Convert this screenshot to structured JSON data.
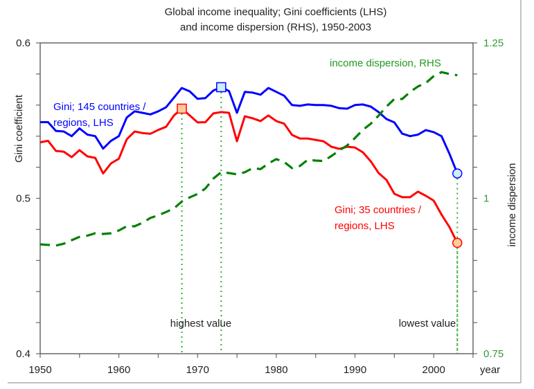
{
  "chart_data": {
    "type": "line",
    "title_line1": "Global income inequality; Gini coefficients (LHS)",
    "title_line2": "and income dispersion (RHS), 1950-2003",
    "xlabel": "year",
    "ylabel": "Gini coefficient",
    "y2label": "income dispersion",
    "xlim": [
      1950,
      2005
    ],
    "ylim": [
      0.4,
      0.6
    ],
    "y2lim": [
      0.75,
      1.25
    ],
    "x_ticks": [
      1950,
      1960,
      1970,
      1980,
      1990,
      2000
    ],
    "x_tick_labels": [
      "1950",
      "1960",
      "1970",
      "1980",
      "1990",
      "2000"
    ],
    "y_tick_labels": [
      "0.6",
      "0.5",
      "0.4"
    ],
    "y_ticks": [
      0.6,
      0.5,
      0.4
    ],
    "y2_tick_labels": [
      "1.25",
      "1",
      "0.75"
    ],
    "y2_ticks": [
      1.25,
      1.0,
      0.75
    ],
    "grid": false,
    "x": [
      1950,
      1951,
      1952,
      1953,
      1954,
      1955,
      1956,
      1957,
      1958,
      1959,
      1960,
      1961,
      1962,
      1963,
      1964,
      1965,
      1966,
      1967,
      1968,
      1969,
      1970,
      1971,
      1972,
      1973,
      1974,
      1975,
      1976,
      1977,
      1978,
      1979,
      1980,
      1981,
      1982,
      1983,
      1984,
      1985,
      1986,
      1987,
      1988,
      1989,
      1990,
      1991,
      1992,
      1993,
      1994,
      1995,
      1996,
      1997,
      1998,
      1999,
      2000,
      2001,
      2002,
      2003
    ],
    "series": [
      {
        "name": "Gini; 145 countries / regions, LHS",
        "label_line1": "Gini; 145 countries /",
        "label_line2": "regions, LHS",
        "axis": "left",
        "color": "#0000ff",
        "values": [
          0.549,
          0.549,
          0.5434,
          0.543,
          0.54,
          0.545,
          0.541,
          0.54,
          0.532,
          0.537,
          0.54,
          0.552,
          0.556,
          0.555,
          0.554,
          0.556,
          0.5586,
          0.5648,
          0.571,
          0.5688,
          0.564,
          0.5645,
          0.5693,
          0.5715,
          0.569,
          0.555,
          0.5685,
          0.568,
          0.5667,
          0.571,
          0.5685,
          0.566,
          0.56,
          0.5595,
          0.5604,
          0.56,
          0.56,
          0.5595,
          0.558,
          0.5577,
          0.56,
          0.5604,
          0.559,
          0.5555,
          0.551,
          0.5488,
          0.5416,
          0.54,
          0.541,
          0.5439,
          0.5426,
          0.54,
          0.5287,
          0.516
        ]
      },
      {
        "name": "Gini; 35 countries / regions, LHS",
        "label_line1": "Gini; 35 countries /",
        "label_line2": "regions, LHS",
        "axis": "left",
        "color": "#ff0000",
        "values": [
          0.536,
          0.537,
          0.5305,
          0.53,
          0.5265,
          0.531,
          0.527,
          0.526,
          0.516,
          0.5225,
          0.5255,
          0.538,
          0.543,
          0.542,
          0.5415,
          0.544,
          0.546,
          0.5533,
          0.5577,
          0.5533,
          0.5488,
          0.549,
          0.5546,
          0.5555,
          0.555,
          0.5367,
          0.5528,
          0.5515,
          0.5497,
          0.5533,
          0.5497,
          0.548,
          0.5408,
          0.5385,
          0.5385,
          0.5376,
          0.5367,
          0.5332,
          0.5318,
          0.5332,
          0.5327,
          0.5296,
          0.5238,
          0.5163,
          0.5118,
          0.5029,
          0.5007,
          0.5007,
          0.5043,
          0.5016,
          0.4985,
          0.4895,
          0.4815,
          0.4713
        ]
      },
      {
        "name": "income dispersion, RHS",
        "label_line1": "income dispersion, RHS",
        "axis": "right",
        "color": "#008000",
        "style": "dashed",
        "values": [
          0.926,
          0.925,
          0.924,
          0.927,
          0.9326,
          0.938,
          0.94,
          0.9438,
          0.9427,
          0.9438,
          0.9482,
          0.955,
          0.955,
          0.9606,
          0.9684,
          0.9727,
          0.978,
          0.9837,
          0.9948,
          1.0015,
          1.007,
          1.0158,
          1.0317,
          1.042,
          1.0407,
          1.0385,
          1.042,
          1.0485,
          1.047,
          1.056,
          1.063,
          1.0585,
          1.0485,
          1.052,
          1.062,
          1.0607,
          1.06,
          1.068,
          1.077,
          1.085,
          1.097,
          1.11,
          1.12,
          1.133,
          1.1476,
          1.1598,
          1.1598,
          1.171,
          1.18,
          1.1855,
          1.1966,
          1.203,
          1.2,
          1.198
        ]
      }
    ],
    "markers": [
      {
        "series": 0,
        "year": 1973,
        "shape": "square",
        "fill": "#cceeff",
        "stroke": "#0000ff",
        "meaning": "highest"
      },
      {
        "series": 1,
        "year": 1968,
        "shape": "square",
        "fill": "#ffcc99",
        "stroke": "#ff0000",
        "meaning": "highest"
      },
      {
        "series": 0,
        "year": 2003,
        "shape": "circle",
        "fill": "#cceeff",
        "stroke": "#0000ff",
        "meaning": "lowest"
      },
      {
        "series": 1,
        "year": 2003,
        "shape": "circle",
        "fill": "#ffcc99",
        "stroke": "#ff0000",
        "meaning": "lowest"
      }
    ],
    "annotations": {
      "highest": "highest value",
      "lowest": "lowest value",
      "highest_years": [
        1968,
        1973
      ],
      "lowest_years": [
        2003
      ]
    },
    "colors": {
      "axis": "#555555",
      "right_tick_labels": "#339933",
      "guide_lines": "#33aa33"
    }
  }
}
